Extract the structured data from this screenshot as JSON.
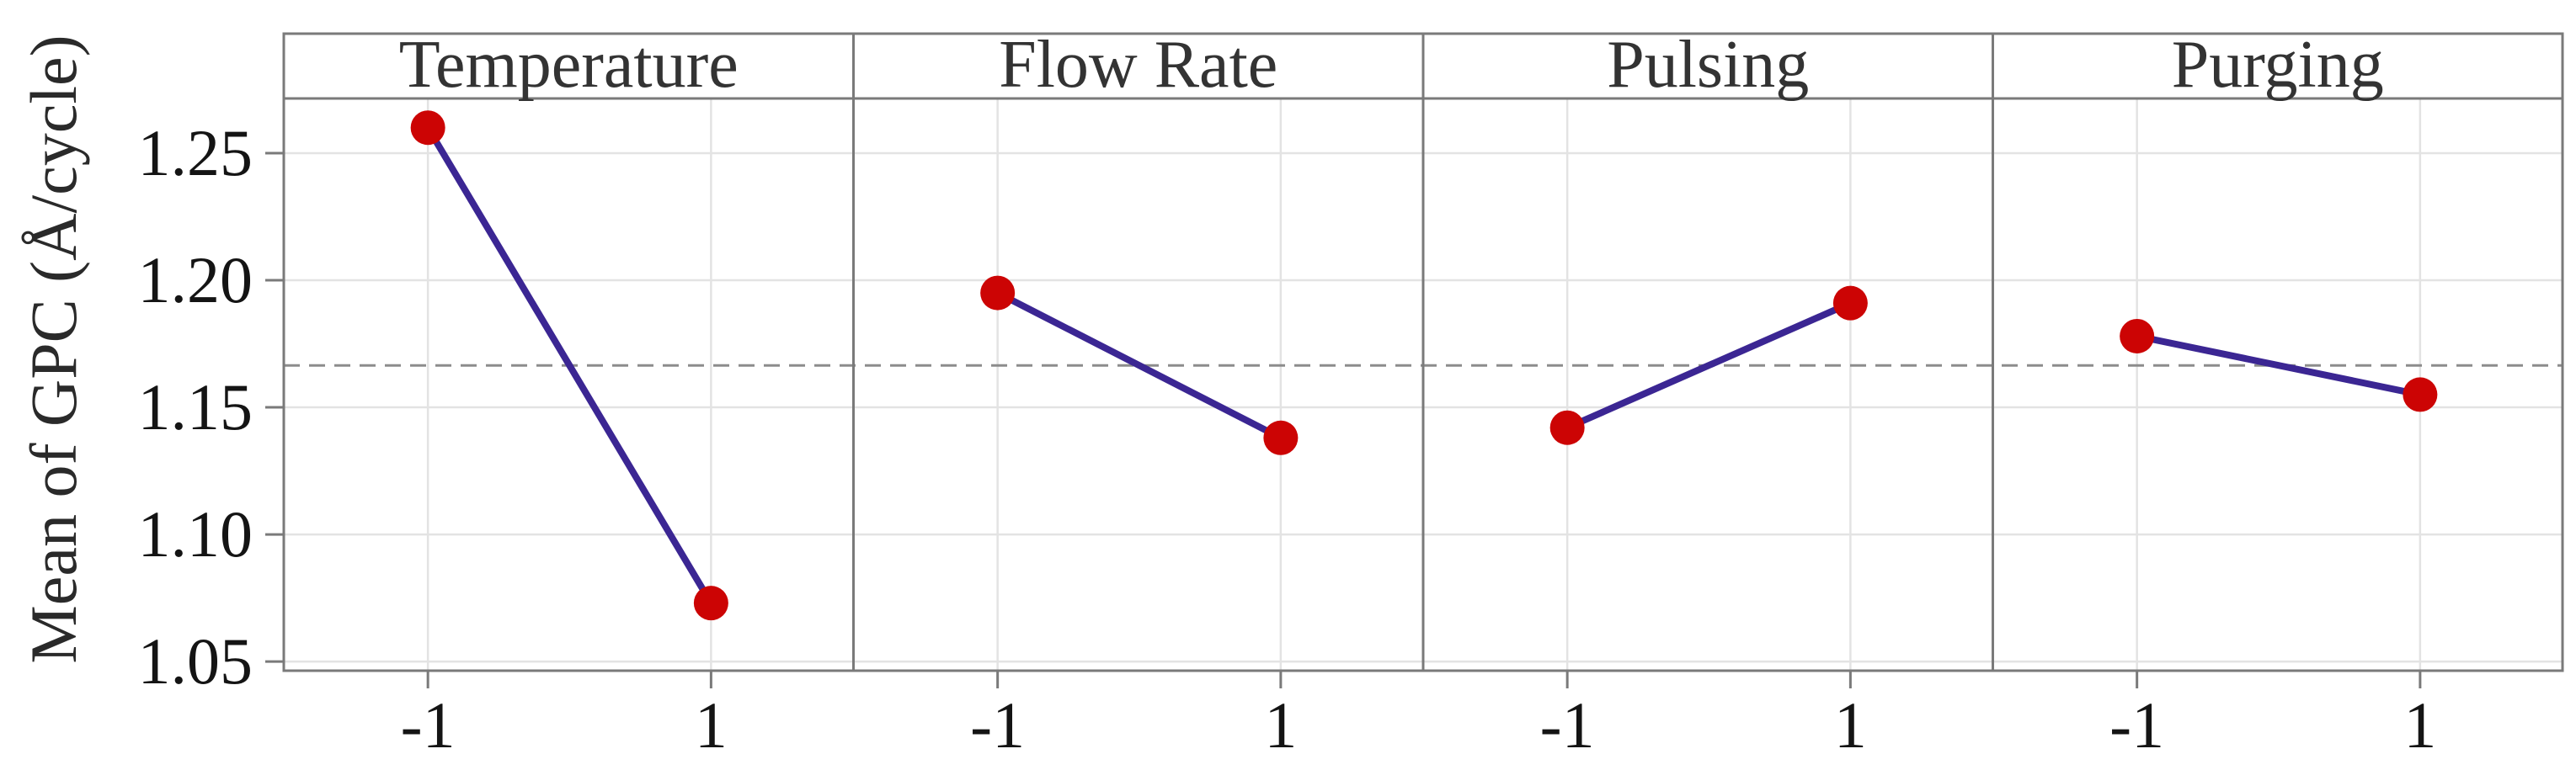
{
  "chart_data": {
    "type": "line",
    "ylabel": "Mean of GPC (Å/cycle)",
    "panels": [
      {
        "title": "Temperature",
        "x": [
          -1,
          1
        ],
        "values": [
          1.26,
          1.073
        ]
      },
      {
        "title": "Flow Rate",
        "x": [
          -1,
          1
        ],
        "values": [
          1.195,
          1.138
        ]
      },
      {
        "title": "Pulsing",
        "x": [
          -1,
          1
        ],
        "values": [
          1.142,
          1.191
        ]
      },
      {
        "title": "Purging",
        "x": [
          -1,
          1
        ],
        "values": [
          1.178,
          1.155
        ]
      }
    ],
    "xtick_labels": [
      "-1",
      "1"
    ],
    "ytick_labels": [
      "1.25",
      "1.20",
      "1.15",
      "1.10",
      "1.05"
    ],
    "yticks": [
      1.25,
      1.2,
      1.15,
      1.1,
      1.05
    ],
    "ylim": [
      1.0464,
      1.2715
    ],
    "mean_line": 1.1665,
    "grid": true,
    "legend_position": "none",
    "colors": {
      "point": "#cc0404",
      "line": "#3b2693",
      "gridline": "#e3e3e3",
      "mean_line": "#8c8c8c",
      "panel_border": "#7a7a7a",
      "title_text": "#333333",
      "tick_text": "#141414",
      "ylabel_text": "#2a2a2a",
      "background": "#ffffff"
    }
  }
}
